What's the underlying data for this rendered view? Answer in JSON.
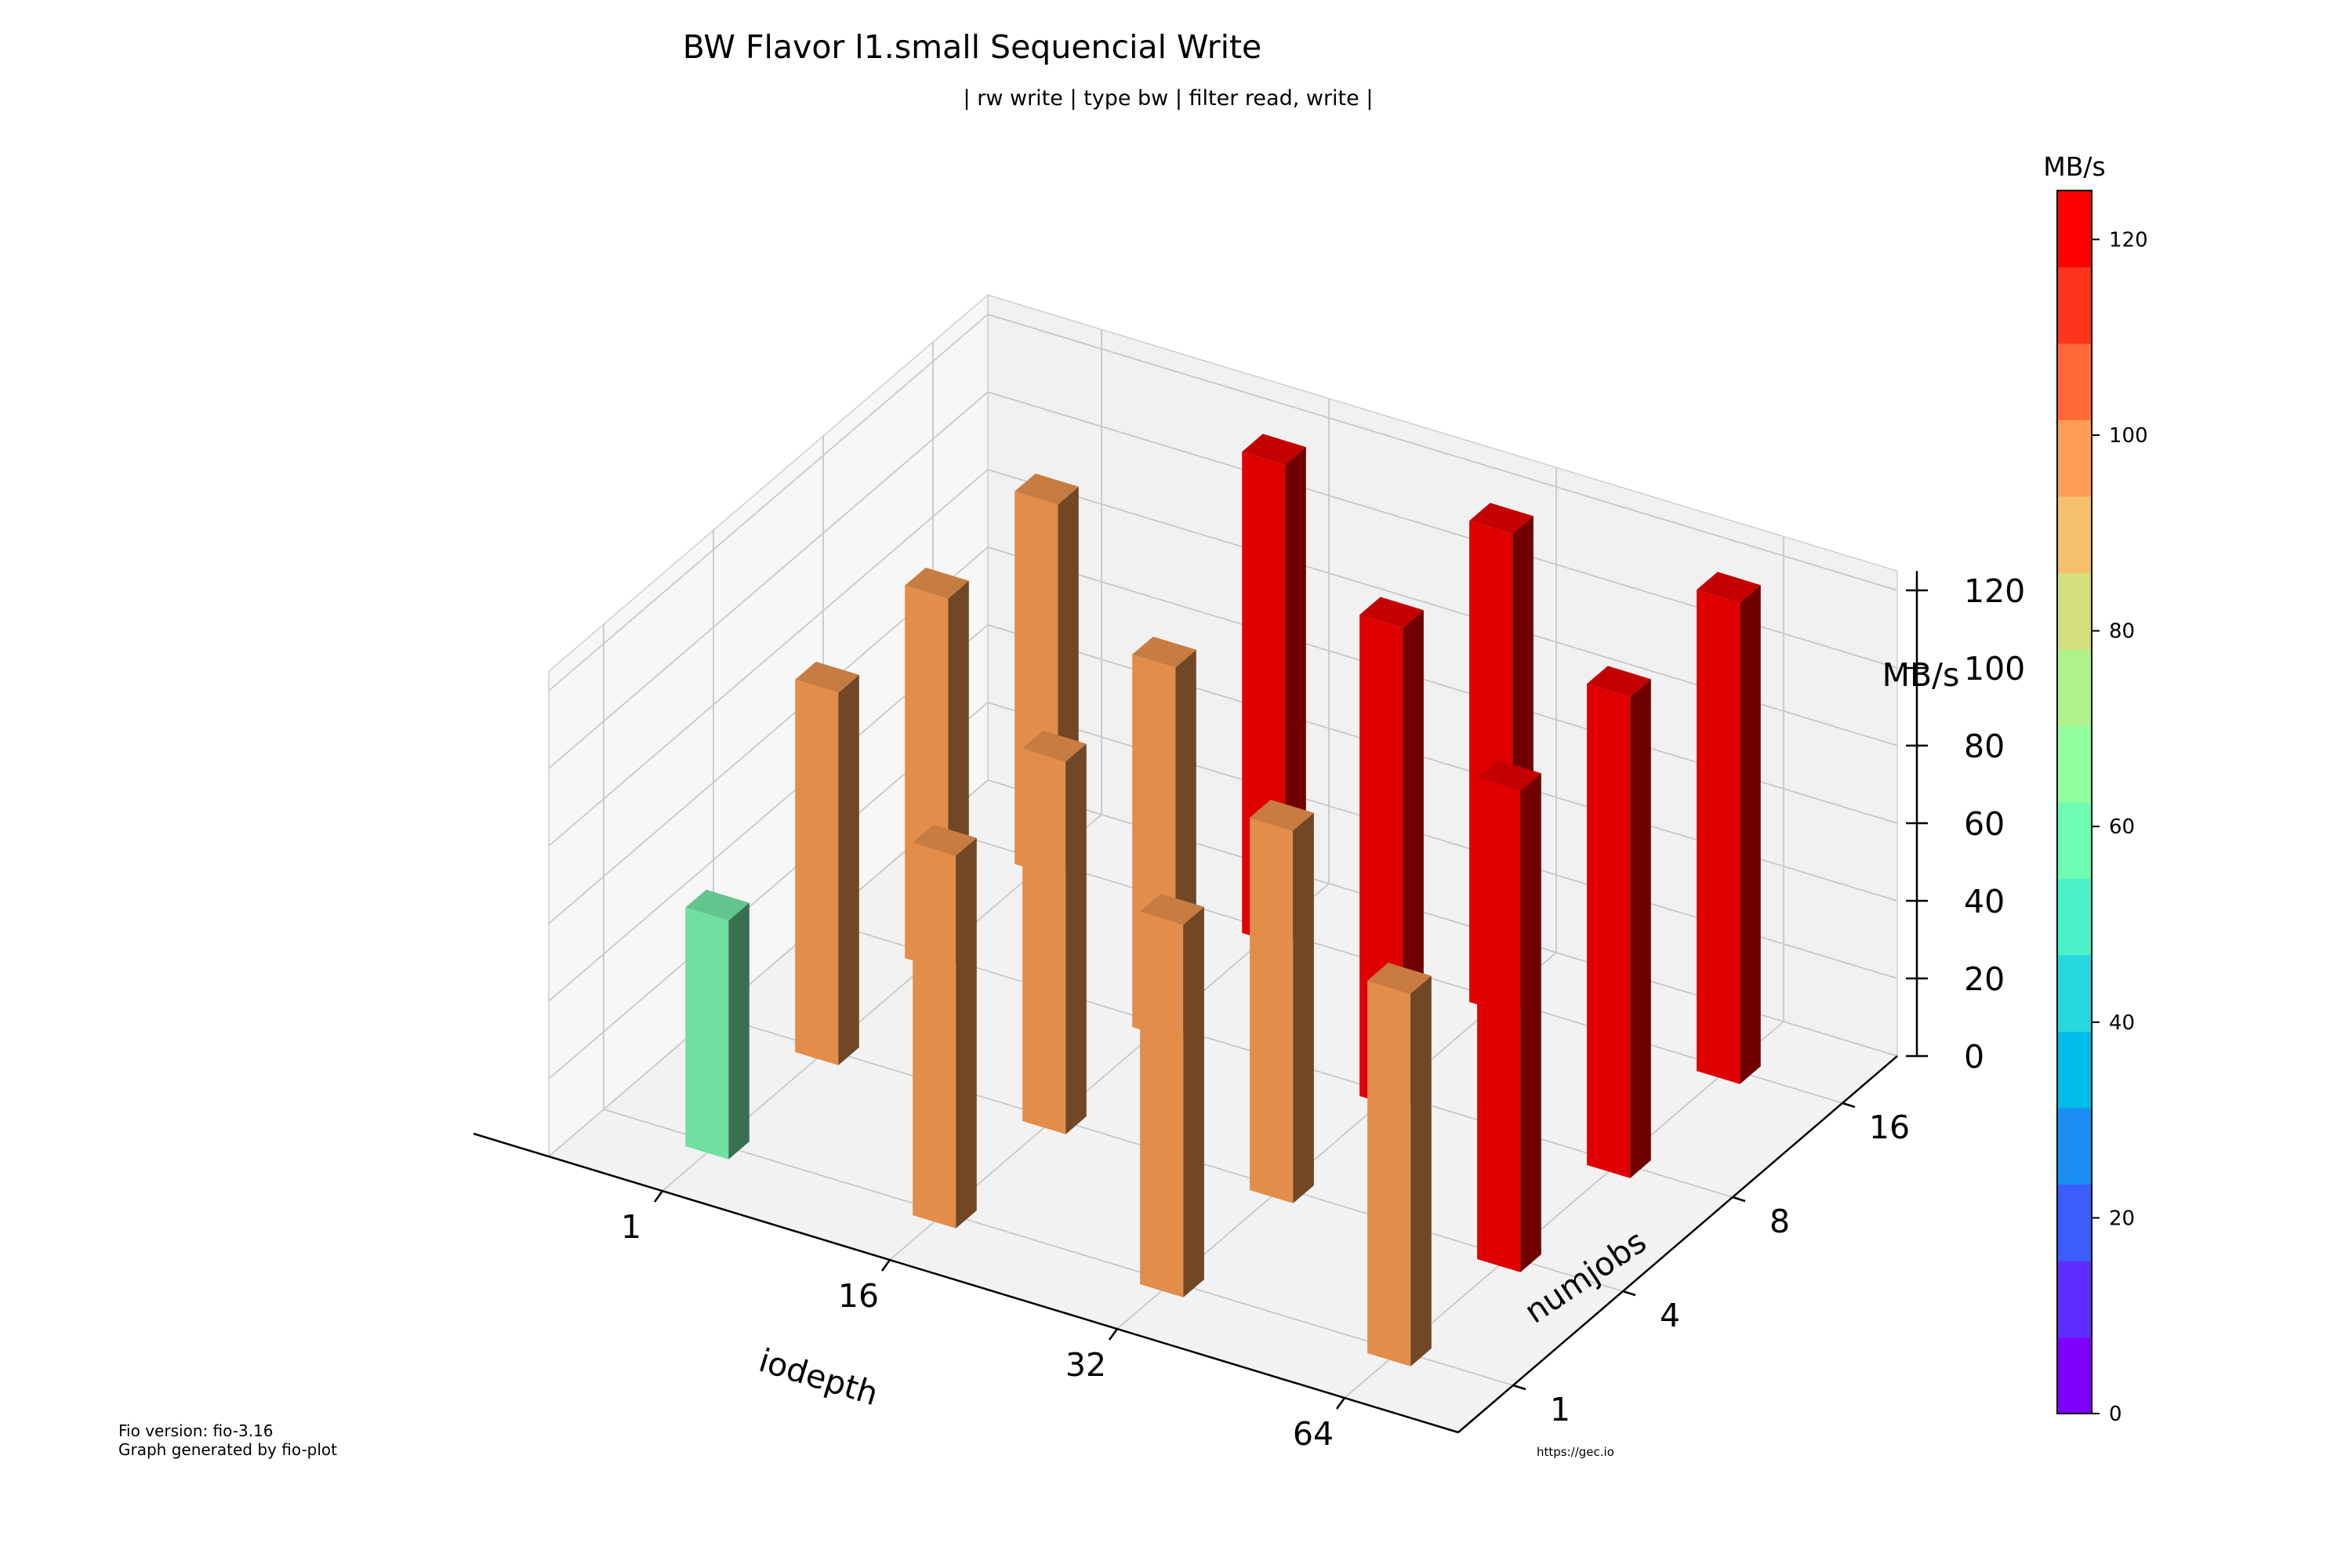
{
  "chart_data": {
    "type": "bar3d",
    "title": "BW Flavor l1.small Sequencial Write",
    "subtitle": "| rw write | type bw | filter read, write |",
    "xlabel": "iodepth",
    "ylabel": "numjobs",
    "zlabel": "MB/s",
    "x_categories": [
      "1",
      "16",
      "32",
      "64"
    ],
    "y_categories": [
      "1",
      "4",
      "8",
      "16"
    ],
    "z_ticks": [
      "0",
      "20",
      "40",
      "60",
      "80",
      "100",
      "120"
    ],
    "zlim": [
      0,
      125
    ],
    "bars": [
      {
        "iodepth": "1",
        "numjobs": "1",
        "value": 61.5
      },
      {
        "iodepth": "1",
        "numjobs": "4",
        "value": 96.0
      },
      {
        "iodepth": "1",
        "numjobs": "8",
        "value": 96.0
      },
      {
        "iodepth": "1",
        "numjobs": "16",
        "value": 96.0
      },
      {
        "iodepth": "16",
        "numjobs": "1",
        "value": 96.0
      },
      {
        "iodepth": "16",
        "numjobs": "4",
        "value": 96.0
      },
      {
        "iodepth": "16",
        "numjobs": "8",
        "value": 96.0
      },
      {
        "iodepth": "16",
        "numjobs": "16",
        "value": 124.0
      },
      {
        "iodepth": "32",
        "numjobs": "1",
        "value": 96.0
      },
      {
        "iodepth": "32",
        "numjobs": "4",
        "value": 96.0
      },
      {
        "iodepth": "32",
        "numjobs": "8",
        "value": 124.0
      },
      {
        "iodepth": "32",
        "numjobs": "16",
        "value": 124.0
      },
      {
        "iodepth": "64",
        "numjobs": "1",
        "value": 96.0
      },
      {
        "iodepth": "64",
        "numjobs": "4",
        "value": 124.0
      },
      {
        "iodepth": "64",
        "numjobs": "8",
        "value": 124.0
      },
      {
        "iodepth": "64",
        "numjobs": "16",
        "value": 124.0
      }
    ],
    "colorbar": {
      "label": "MB/s",
      "ticks": [
        "0",
        "20",
        "40",
        "60",
        "80",
        "100",
        "120"
      ],
      "range": [
        0,
        125
      ],
      "colors": [
        "#7f00ff",
        "#5f2dff",
        "#3a5efb",
        "#1a8ef4",
        "#00bce8",
        "#26d8de",
        "#4bf1c8",
        "#6ffdb3",
        "#92ffa0",
        "#b1f18a",
        "#d5df7e",
        "#f4c06c",
        "#ff9d55",
        "#ff6a38",
        "#ff341c",
        "#ff0000"
      ]
    },
    "bar_colors": {
      "low": "#70e0a0",
      "mid": "#e28d4a",
      "high": "#e00000"
    }
  },
  "footer": {
    "fio_version": "Fio version: fio-3.16",
    "generated_by": "Graph generated by fio-plot",
    "url": "https://gec.io"
  }
}
